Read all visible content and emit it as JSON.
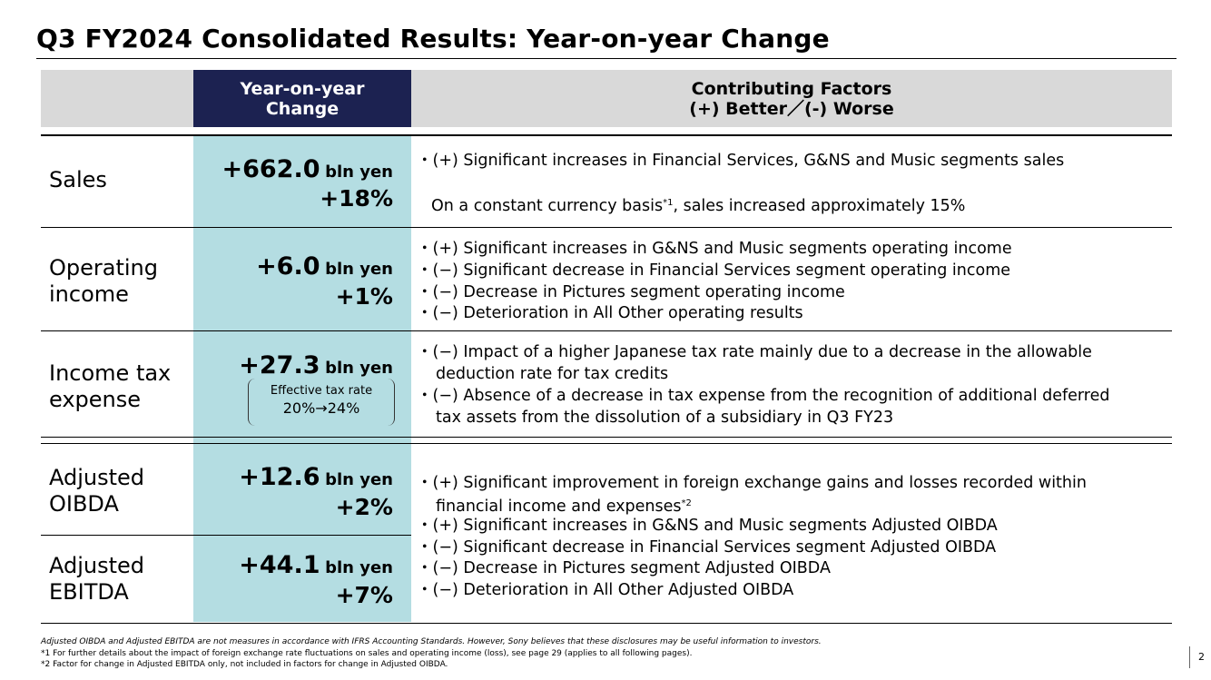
{
  "title": "Q3 FY2024 Consolidated Results: Year-on-year Change",
  "header": {
    "col_change_line1": "Year-on-year",
    "col_change_line2": "Change",
    "col_factors_line1": "Contributing Factors",
    "col_factors_line2": "(+) Better／(-) Worse"
  },
  "rows": {
    "sales": {
      "label": "Sales",
      "value": "+662.0",
      "unit": "bln yen",
      "pct": "+18%",
      "factor1": "・(+) Significant increases in Financial Services, G&NS and Music segments sales",
      "factor2_pre": "On a constant currency basis",
      "factor2_sup": "*1",
      "factor2_post": ", sales increased approximately 15%"
    },
    "operating": {
      "label_line1": "Operating",
      "label_line2": "income",
      "value": "+6.0",
      "unit": "bln yen",
      "pct": "+1%",
      "factors": [
        "・(+) Significant increases in G&NS and Music segments operating income",
        "・(−) Significant decrease in Financial Services segment operating income",
        "・(−) Decrease in Pictures segment operating income",
        "・(−) Deterioration in All Other operating results"
      ]
    },
    "tax": {
      "label_line1": "Income tax",
      "label_line2": "expense",
      "value": "+27.3",
      "unit": "bln yen",
      "box_line1": "Effective tax rate",
      "box_line2": "20%→24%",
      "factor1a": "・(−) Impact of a higher Japanese tax rate mainly due to a decrease in the allowable",
      "factor1b": "deduction rate for tax credits",
      "factor2a": "・(−) Absence of a decrease in tax expense from the recognition of additional deferred",
      "factor2b": "tax assets from the dissolution of a subsidiary in Q3 FY23"
    },
    "oibda": {
      "label_line1": "Adjusted",
      "label_line2": "OIBDA",
      "value": "+12.6",
      "unit": "bln yen",
      "pct": "+2%"
    },
    "ebitda": {
      "label_line1": "Adjusted",
      "label_line2": "EBITDA",
      "value": "+44.1",
      "unit": "bln yen",
      "pct": "+7%"
    },
    "adjusted_factors": {
      "f1a": "・(+) Significant improvement in foreign exchange gains and losses recorded within",
      "f1b_pre": "financial income and expenses",
      "f1b_sup": "*2",
      "f2": "・(+) Significant increases in G&NS and Music segments Adjusted OIBDA",
      "f3": "・(−) Significant decrease in Financial Services segment Adjusted OIBDA",
      "f4": "・(−) Decrease in Pictures segment Adjusted OIBDA",
      "f5": "・(−) Deterioration in All Other Adjusted OIBDA"
    }
  },
  "footnotes": {
    "disclaimer": "Adjusted OIBDA and Adjusted EBITDA are not measures in accordance with IFRS Accounting Standards. However, Sony believes that these disclosures may be useful information to investors.",
    "note1": "*1 For further details about the impact of foreign exchange rate fluctuations on sales and operating income (loss), see page 29 (applies to all following pages).",
    "note2": "*2 Factor for change in Adjusted EBITDA only, not included in factors for change in Adjusted OIBDA."
  },
  "page_number": "2"
}
